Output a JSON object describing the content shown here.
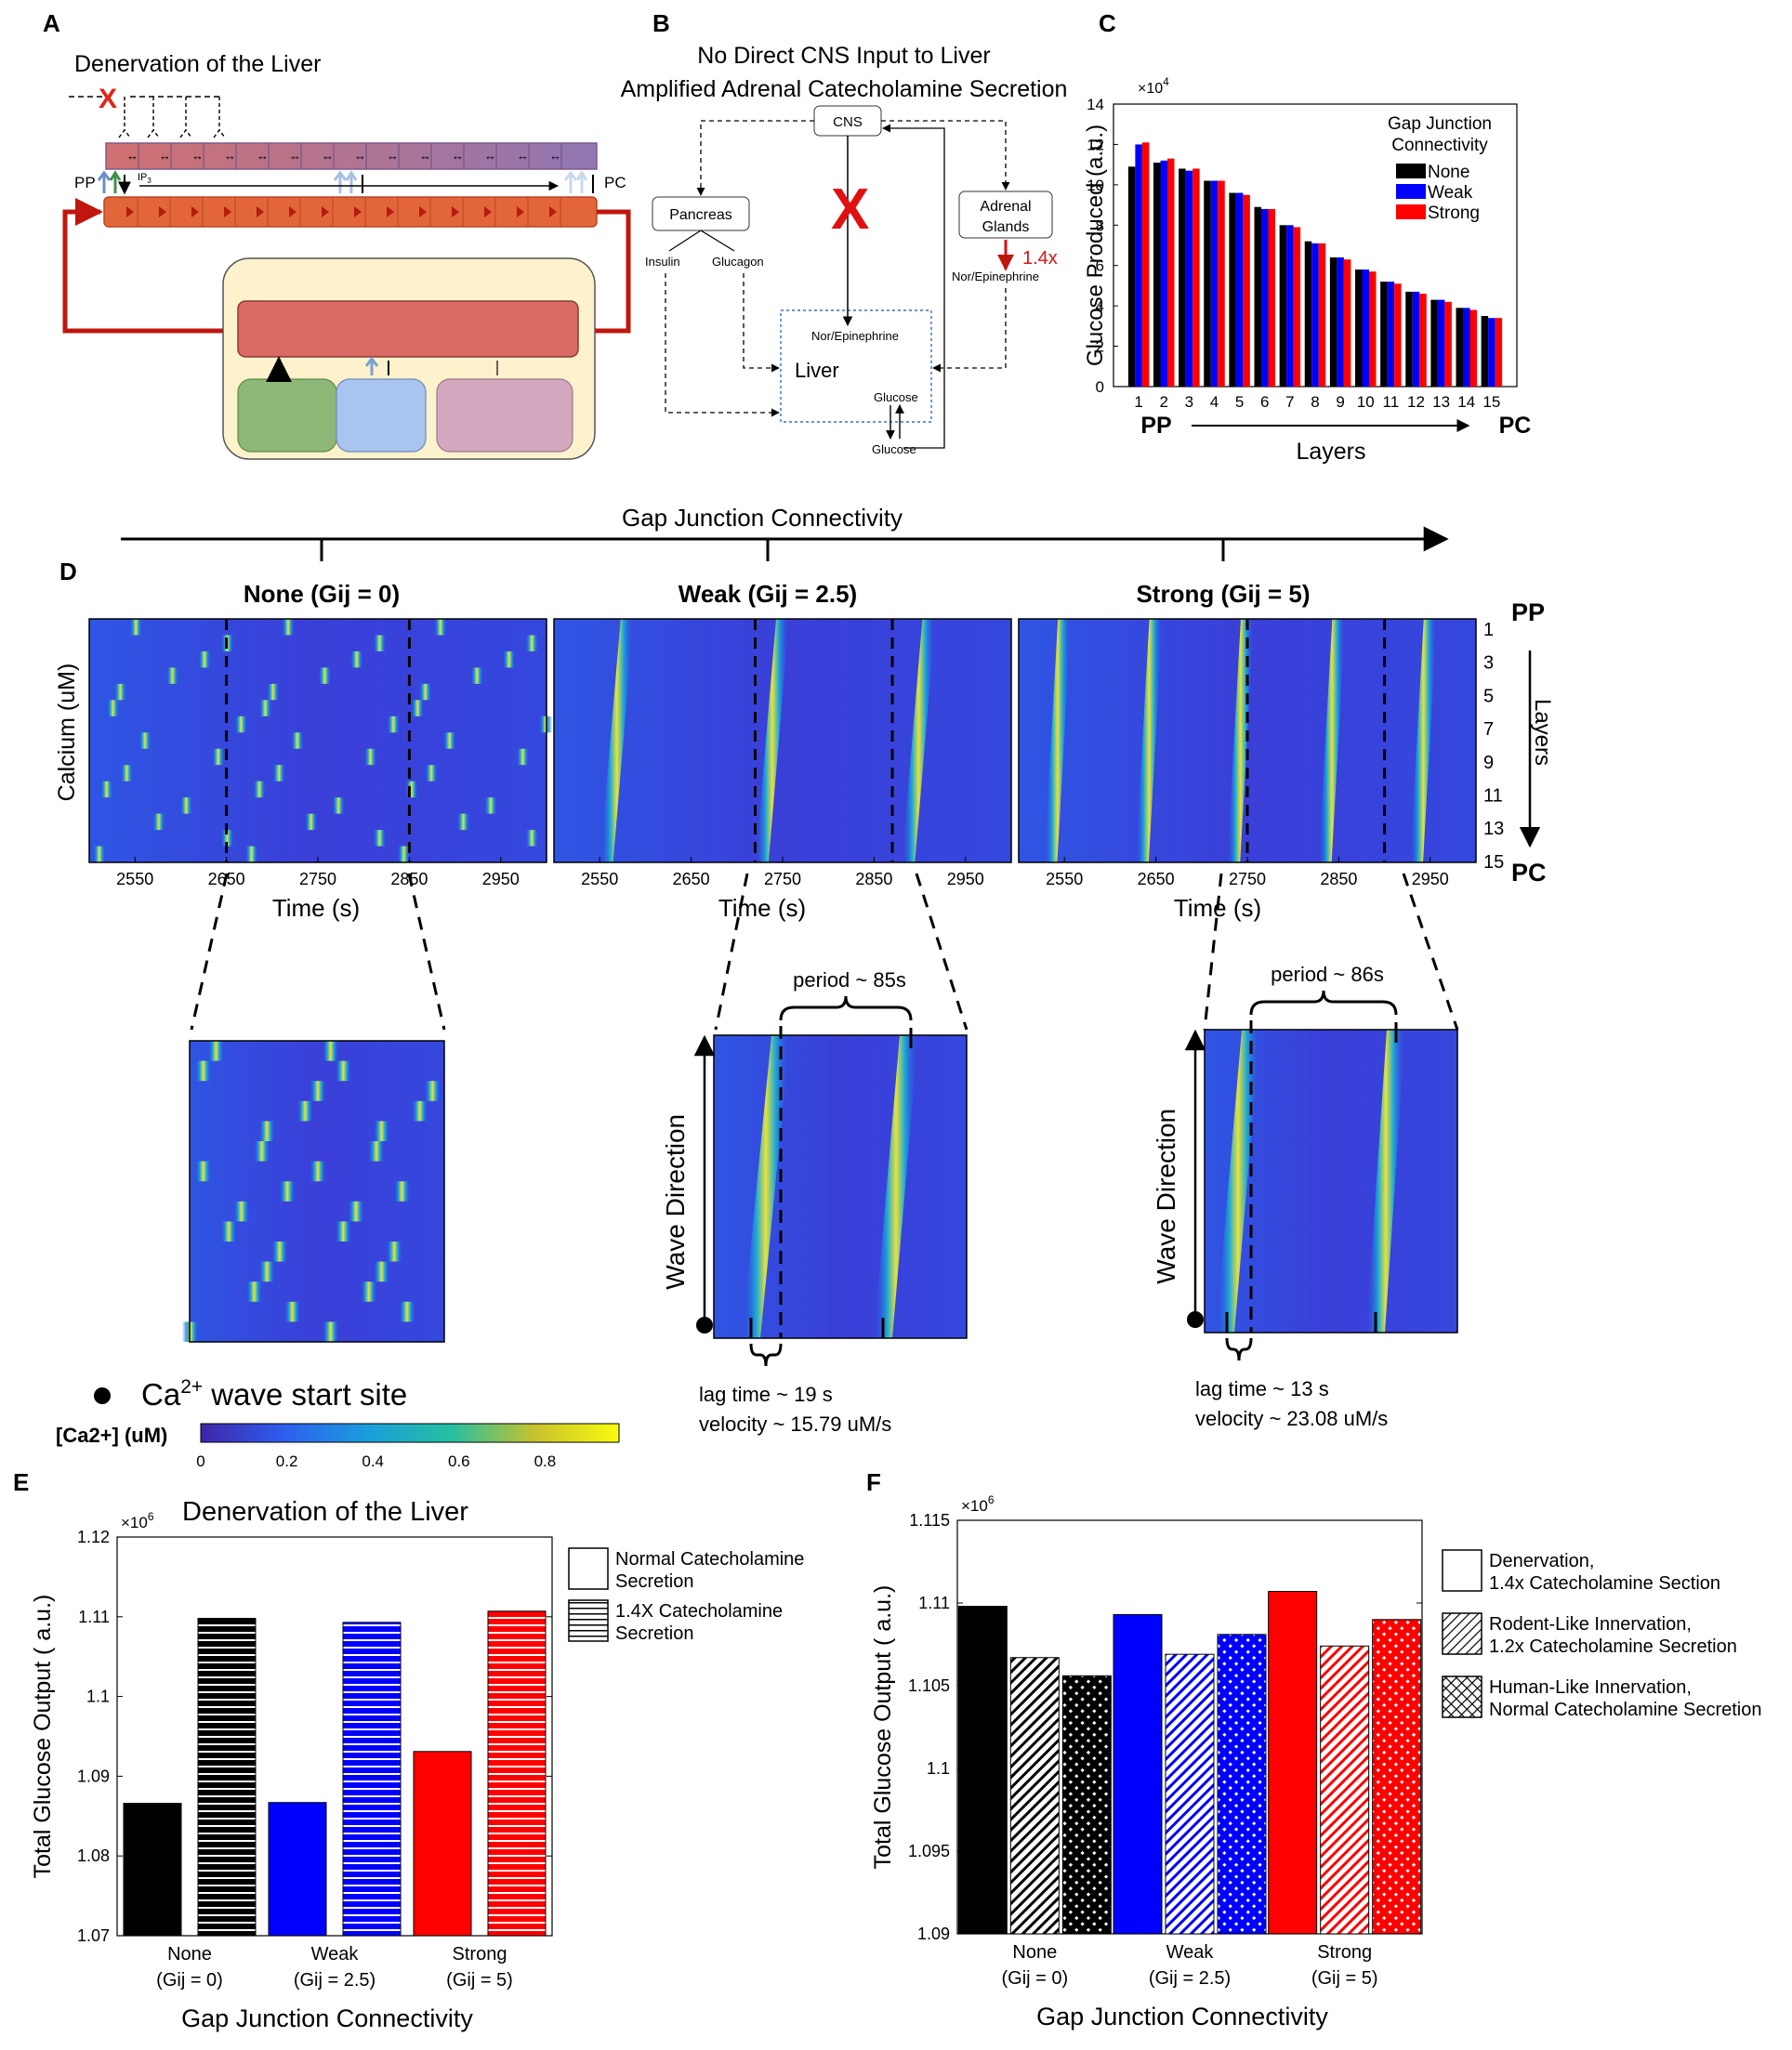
{
  "panel_letters": {
    "a": "A",
    "b": "B",
    "c": "C",
    "d": "D",
    "e": "E",
    "f": "F"
  },
  "panelA": {
    "title": "Denervation of the Liver",
    "pp": "PP",
    "pc": "PC",
    "ip3": "IP",
    "ip3_sub": "3"
  },
  "panelB": {
    "title_line1": "No Direct CNS Input to Liver",
    "title_line2": "Amplified Adrenal Catecholamine Secretion",
    "cns": "CNS",
    "pancreas": "Pancreas",
    "insulin": "Insulin",
    "glucagon": "Glucagon",
    "adrenal_line1": "Adrenal",
    "adrenal_line2": "Glands",
    "multiplier": "1.4x",
    "norepi": "Nor/Epinephrine",
    "liver": "Liver",
    "glucose": "Glucose",
    "cross": "X"
  },
  "colors": {
    "black": "#000000",
    "blue": "#0000ff",
    "red": "#ff0000",
    "parula_low": "#3a35d6",
    "parula_high": "#f9fb0e"
  },
  "panelD": {
    "top_axis_label": "Gap Junction Connectivity",
    "ylabel": "Calcium (uM)",
    "xlabel": "Time (s)",
    "layers_label": "Layers",
    "pp": "PP",
    "pc": "PC",
    "heatmaps": [
      {
        "title": "None (Gij = 0)",
        "xticks": [
          "2550",
          "2650",
          "2750",
          "2850",
          "2950"
        ]
      },
      {
        "title": "Weak (Gij = 2.5)",
        "xticks": [
          "2550",
          "2650",
          "2750",
          "2850",
          "2950"
        ]
      },
      {
        "title": "Strong (Gij = 5)",
        "xticks": [
          "2550",
          "2650",
          "2750",
          "2850",
          "2950"
        ]
      }
    ],
    "layer_ticks": [
      "1",
      "3",
      "5",
      "7",
      "9",
      "11",
      "13",
      "15"
    ],
    "zoom_weak": {
      "period": "period ~ 85s",
      "lag": "lag time ~ 19 s",
      "velocity": "velocity ~ 15.79 uM/s",
      "wave_dir": "Wave Direction"
    },
    "zoom_strong": {
      "period": "period ~ 86s",
      "lag": "lag time ~ 13 s",
      "velocity": "velocity ~ 23.08 uM/s",
      "wave_dir": "Wave Direction"
    },
    "start_site": "Ca",
    "start_site_sup": "2+",
    "start_site_rest": " wave start site",
    "colorbar_label": "[Ca2+] (uM)",
    "colorbar_ticks": [
      "0",
      "0.2",
      "0.4",
      "0.6",
      "0.8"
    ]
  },
  "chart_data": [
    {
      "id": "C",
      "type": "bar",
      "categories": [
        "1",
        "2",
        "3",
        "4",
        "5",
        "6",
        "7",
        "8",
        "9",
        "10",
        "11",
        "12",
        "13",
        "14",
        "15"
      ],
      "series": [
        {
          "name": "None",
          "color": "#000000",
          "values": [
            10.9,
            11.1,
            10.8,
            10.2,
            9.6,
            8.9,
            8.0,
            7.2,
            6.4,
            5.8,
            5.2,
            4.7,
            4.3,
            3.9,
            3.5
          ]
        },
        {
          "name": "Weak",
          "color": "#0000ff",
          "values": [
            12.0,
            11.2,
            10.7,
            10.2,
            9.6,
            8.8,
            8.0,
            7.1,
            6.4,
            5.8,
            5.2,
            4.7,
            4.3,
            3.9,
            3.4
          ]
        },
        {
          "name": "Strong",
          "color": "#ff0000",
          "values": [
            12.1,
            11.3,
            10.8,
            10.2,
            9.5,
            8.8,
            7.9,
            7.1,
            6.3,
            5.7,
            5.1,
            4.6,
            4.2,
            3.8,
            3.4
          ]
        }
      ],
      "ylabel": "Glucose Produced (a.u.)",
      "yscale": "×10",
      "yscale_exp": "4",
      "ylim": [
        0,
        14
      ],
      "yticks": [
        "0",
        "2",
        "4",
        "6",
        "8",
        "10",
        "12",
        "14"
      ],
      "xlabel": "Layers",
      "x_start": "PP",
      "x_end": "PC",
      "legend_title_line1": "Gap Junction",
      "legend_title_line2": "Connectivity",
      "legend": "top-right"
    },
    {
      "id": "E",
      "type": "bar",
      "title": "Denervation of the Liver",
      "categories": [
        "None",
        "Weak",
        "Strong"
      ],
      "category_sub": [
        "(Gij = 0)",
        "(Gij = 2.5)",
        "(Gij = 5)"
      ],
      "category_colors": [
        "#000000",
        "#0000ff",
        "#ff0000"
      ],
      "series": [
        {
          "name": "Normal Catecholamine Secretion",
          "pattern": "solid",
          "values": [
            1.0866,
            1.0867,
            1.0931
          ]
        },
        {
          "name": "1.4X Catecholamine Secretion",
          "pattern": "horizontal",
          "values": [
            1.1098,
            1.1093,
            1.1107
          ]
        }
      ],
      "ylabel": "Total Glucose Output ( a.u.)",
      "yscale": "×10",
      "yscale_exp": "6",
      "ylim": [
        1.07,
        1.12
      ],
      "yticks": [
        "1.07",
        "1.08",
        "1.09",
        "1.1",
        "1.11",
        "1.12"
      ],
      "xlabel": "Gap Junction Connectivity",
      "legend_items": [
        [
          "Normal Catecholamine",
          "Secretion"
        ],
        [
          "1.4X Catecholamine",
          "Secretion"
        ]
      ],
      "legend": "right"
    },
    {
      "id": "F",
      "type": "bar",
      "categories": [
        "None",
        "Weak",
        "Strong"
      ],
      "category_sub": [
        "(Gij = 0)",
        "(Gij = 2.5)",
        "(Gij = 5)"
      ],
      "category_colors": [
        "#000000",
        "#0000ff",
        "#ff0000"
      ],
      "series": [
        {
          "name": "Denervation, 1.4x Catecholamine Section",
          "pattern": "solid",
          "values": [
            1.1098,
            1.1093,
            1.1107
          ]
        },
        {
          "name": "Rodent-Like Innervation, 1.2x Catecholamine Secretion",
          "pattern": "diagonal",
          "values": [
            1.1067,
            1.1069,
            1.1074
          ]
        },
        {
          "name": "Human-Like Innervation, Normal Catecholamine Secretion",
          "pattern": "cross",
          "values": [
            1.1056,
            1.1081,
            1.109
          ]
        }
      ],
      "ylabel": "Total Glucose Output ( a.u.)",
      "yscale": "×10",
      "yscale_exp": "6",
      "ylim": [
        1.09,
        1.115
      ],
      "yticks": [
        "1.09",
        "1.095",
        "1.1",
        "1.105",
        "1.11",
        "1.115"
      ],
      "xlabel": "Gap Junction Connectivity",
      "legend_items": [
        [
          "Denervation,",
          "1.4x Catecholamine Section"
        ],
        [
          "Rodent-Like Innervation,",
          "1.2x Catecholamine Secretion"
        ],
        [
          "Human-Like Innervation,",
          "Normal Catecholamine Secretion"
        ]
      ],
      "legend": "right"
    }
  ]
}
